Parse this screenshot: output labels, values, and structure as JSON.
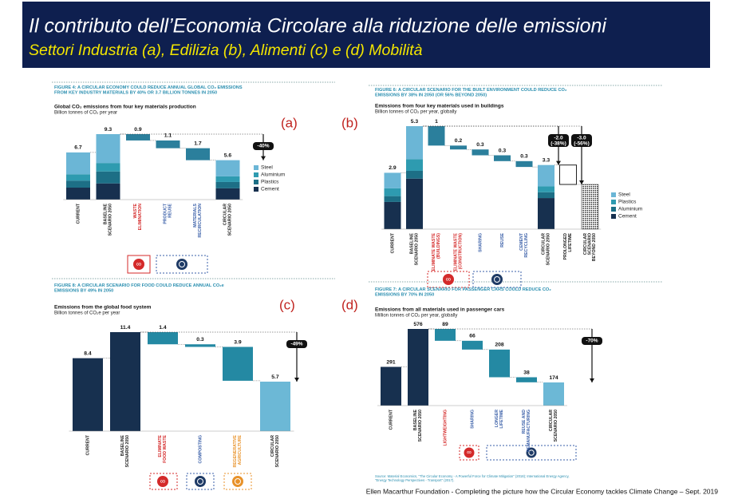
{
  "title": "Il contributo dell’Economia Circolare alla riduzione delle emissioni",
  "subtitle": "Settori Industria (a), Edilizia  (b), Alimenti (c) e (d) Mobilità",
  "footer": "Ellen Macarthur Foundation - Completing  the picture how the Circular Economy tackles Climate Change – Sept. 2019",
  "chart_data": [
    {
      "type": "waterfall",
      "panel_label": "(a)",
      "figure_title": "FIGURE 4: A CIRCULAR ECONOMY COULD REDUCE ANNUAL GLOBAL CO₂ EMISSIONS\nFROM KEY INDUSTRY MATERIALS BY 40% OR 3.7 BILLION TONNES IN 2050",
      "title": "Global CO₂ emissions from four key materials production",
      "subtitle": "Billion tonnes of CO₂ per year",
      "categories": [
        "CURRENT",
        "BASELINE\nSCENARIO 2050",
        "WASTE\nELIMINATION",
        "PRODUCT\nREUSE",
        "MATERIALS\nRECIRCULATION",
        "CIRCULAR\nSCENARIO 2050"
      ],
      "label_colors": [
        "#222222",
        "#222222",
        "#d42a2a",
        "#3a5fa8",
        "#3a5fa8",
        "#222222"
      ],
      "measure": [
        "total",
        "total",
        "decrease",
        "decrease",
        "decrease",
        "total"
      ],
      "values": [
        6.7,
        9.3,
        0.9,
        1.1,
        1.7,
        5.6
      ],
      "value_labels": [
        "6.7",
        "9.3",
        "0.9",
        "1.1",
        "1.7",
        "5.6"
      ],
      "colors": [
        "#17304f",
        "#17304f",
        "#2b7f9c",
        "#2b7f9c",
        "#2b7f9c",
        "#17304f"
      ],
      "series": [
        {
          "name": "Steel",
          "color": "#6bb6d6",
          "values": [
            3.1,
            4.1,
            null,
            null,
            null,
            2.3
          ]
        },
        {
          "name": "Aluminium",
          "color": "#2e9bb0",
          "values": [
            0.9,
            1.2,
            null,
            null,
            null,
            0.8
          ]
        },
        {
          "name": "Plastics",
          "color": "#1d6f86",
          "values": [
            1.0,
            1.7,
            null,
            null,
            null,
            0.9
          ]
        },
        {
          "name": "Cement",
          "color": "#17304f",
          "values": [
            1.7,
            2.3,
            null,
            null,
            null,
            1.6
          ]
        }
      ],
      "annotations": [
        "-40%"
      ]
    },
    {
      "type": "waterfall",
      "panel_label": "(b)",
      "figure_title": "FIGURE 6: A CIRCULAR SCENARIO FOR THE BUILT ENVIRONMENT COULD REDUCE CO₂\nEMISSIONS BY 38% IN 2050 (OR 56% BEYOND 2050)",
      "title": "Emissions from four key materials used in buildings",
      "subtitle": "Billion tonnes of CO₂ per year, globally",
      "categories": [
        "CURRENT",
        "BASELINE\nSCENARIO 2050",
        "ELIMINATE WASTE\n(BUILDINGS)",
        "ELIMINATE WASTE\n(CONSTRUCTION)",
        "SHARING",
        "REUSE",
        "CEMENT\nRECYCLING",
        "CIRCULAR\nSCENARIO 2050",
        "PROLONGED\nLIFETIME",
        "CIRCULAR\nSCENARIO\nBEYOND 2050"
      ],
      "label_colors": [
        "#222222",
        "#222222",
        "#d42a2a",
        "#d42a2a",
        "#3a5fa8",
        "#3a5fa8",
        "#3a5fa8",
        "#222222",
        "#222222",
        "#222222"
      ],
      "measure": [
        "total",
        "total",
        "decrease",
        "decrease",
        "decrease",
        "decrease",
        "decrease",
        "total",
        "decrease",
        "total"
      ],
      "values": [
        2.9,
        5.3,
        1,
        0.2,
        0.3,
        0.3,
        0.3,
        3.3,
        1.0,
        2.3
      ],
      "value_labels": [
        "2.9",
        "5.3",
        "1",
        "0.2",
        "0.3",
        "0.3",
        "0.3",
        "3.3",
        null,
        null
      ],
      "colors": [
        "#17304f",
        "#17304f",
        "#2b7f9c",
        "#2b7f9c",
        "#2b7f9c",
        "#2b7f9c",
        "#2b7f9c",
        "#17304f",
        "#ffffff",
        "#9a9a9a"
      ],
      "series": [
        {
          "name": "Steel",
          "color": "#6bb6d6",
          "values": [
            0.8,
            1.7,
            null,
            null,
            null,
            null,
            null,
            1.1,
            null,
            null
          ]
        },
        {
          "name": "Plastics",
          "color": "#2e9bb0",
          "values": [
            0.4,
            0.6,
            null,
            null,
            null,
            null,
            null,
            0.3,
            null,
            null
          ]
        },
        {
          "name": "Aluminium",
          "color": "#1d6f86",
          "values": [
            0.3,
            0.4,
            null,
            null,
            null,
            null,
            null,
            0.3,
            null,
            null
          ]
        },
        {
          "name": "Cement",
          "color": "#17304f",
          "values": [
            1.4,
            2.6,
            null,
            null,
            null,
            null,
            null,
            1.6,
            null,
            null
          ]
        }
      ],
      "annotations": [
        "-2.0\n(-38%)",
        "-3.0\n(-56%)"
      ]
    },
    {
      "type": "waterfall",
      "panel_label": "(c)",
      "figure_title": "FIGURE 8: A CIRCULAR SCENARIO FOR FOOD COULD REDUCE ANNUAL CO₂e\nEMISSIONS BY 49% IN 2050",
      "title": "Emissions from the global food system",
      "subtitle": "Billion tonnes of CO₂e per year",
      "categories": [
        "CURRENT",
        "BASELINE\nSCENARIO 2050",
        "ELIMINATE\nFOOD WASTE",
        "COMPOSTING",
        "REGENERATIVE\nAGRICULTURE",
        "CIRCULAR\nSCENARIO 2050"
      ],
      "label_colors": [
        "#222222",
        "#222222",
        "#d42a2a",
        "#3a5fa8",
        "#e8922a",
        "#222222"
      ],
      "measure": [
        "total",
        "total",
        "decrease",
        "decrease",
        "decrease",
        "total"
      ],
      "values": [
        8.4,
        11.4,
        1.4,
        0.3,
        3.9,
        5.7
      ],
      "value_labels": [
        "8.4",
        "11.4",
        "1.4",
        "0.3",
        "3.9",
        "5.7"
      ],
      "colors": [
        "#17304f",
        "#17304f",
        "#2489a3",
        "#2489a3",
        "#2489a3",
        "#6cb8d6"
      ],
      "annotations": [
        "-49%"
      ]
    },
    {
      "type": "waterfall",
      "panel_label": "(d)",
      "figure_title": "FIGURE 7: A CIRCULAR SCENARIO FOR PASSENGER CARS COULD REDUCE CO₂\nEMISSIONS BY 70% IN 2050",
      "title": "Emissions from all materials used in passenger cars",
      "subtitle": "Million tonnes of CO₂ per year, globally",
      "categories": [
        "CURRENT",
        "BASELINE\nSCENARIO 2050",
        "LIGHTWEIGHTING",
        "SHARING",
        "LONGER\nLIFETIME",
        "REUSE AND\nREMANUFACTURING",
        "CIRCULAR\nSCENARIO 2050"
      ],
      "label_colors": [
        "#222222",
        "#222222",
        "#d42a2a",
        "#3a5fa8",
        "#3a5fa8",
        "#3a5fa8",
        "#222222"
      ],
      "measure": [
        "total",
        "total",
        "decrease",
        "decrease",
        "decrease",
        "decrease",
        "total"
      ],
      "values": [
        291,
        576,
        89,
        66,
        208,
        38,
        174
      ],
      "value_labels": [
        "291",
        "576",
        "89",
        "66",
        "208",
        "38",
        "174"
      ],
      "colors": [
        "#17304f",
        "#17304f",
        "#2489a3",
        "#2489a3",
        "#2489a3",
        "#2489a3",
        "#6cb8d6"
      ],
      "annotations": [
        "-70%"
      ],
      "source": "Source: Material Economics, \"The Circular Economy - A Powerful Force for Climate Mitigation\" (2018); International Energy Agency,\n\"Energy Technology Perspectives - Transport\" (2017)."
    }
  ]
}
